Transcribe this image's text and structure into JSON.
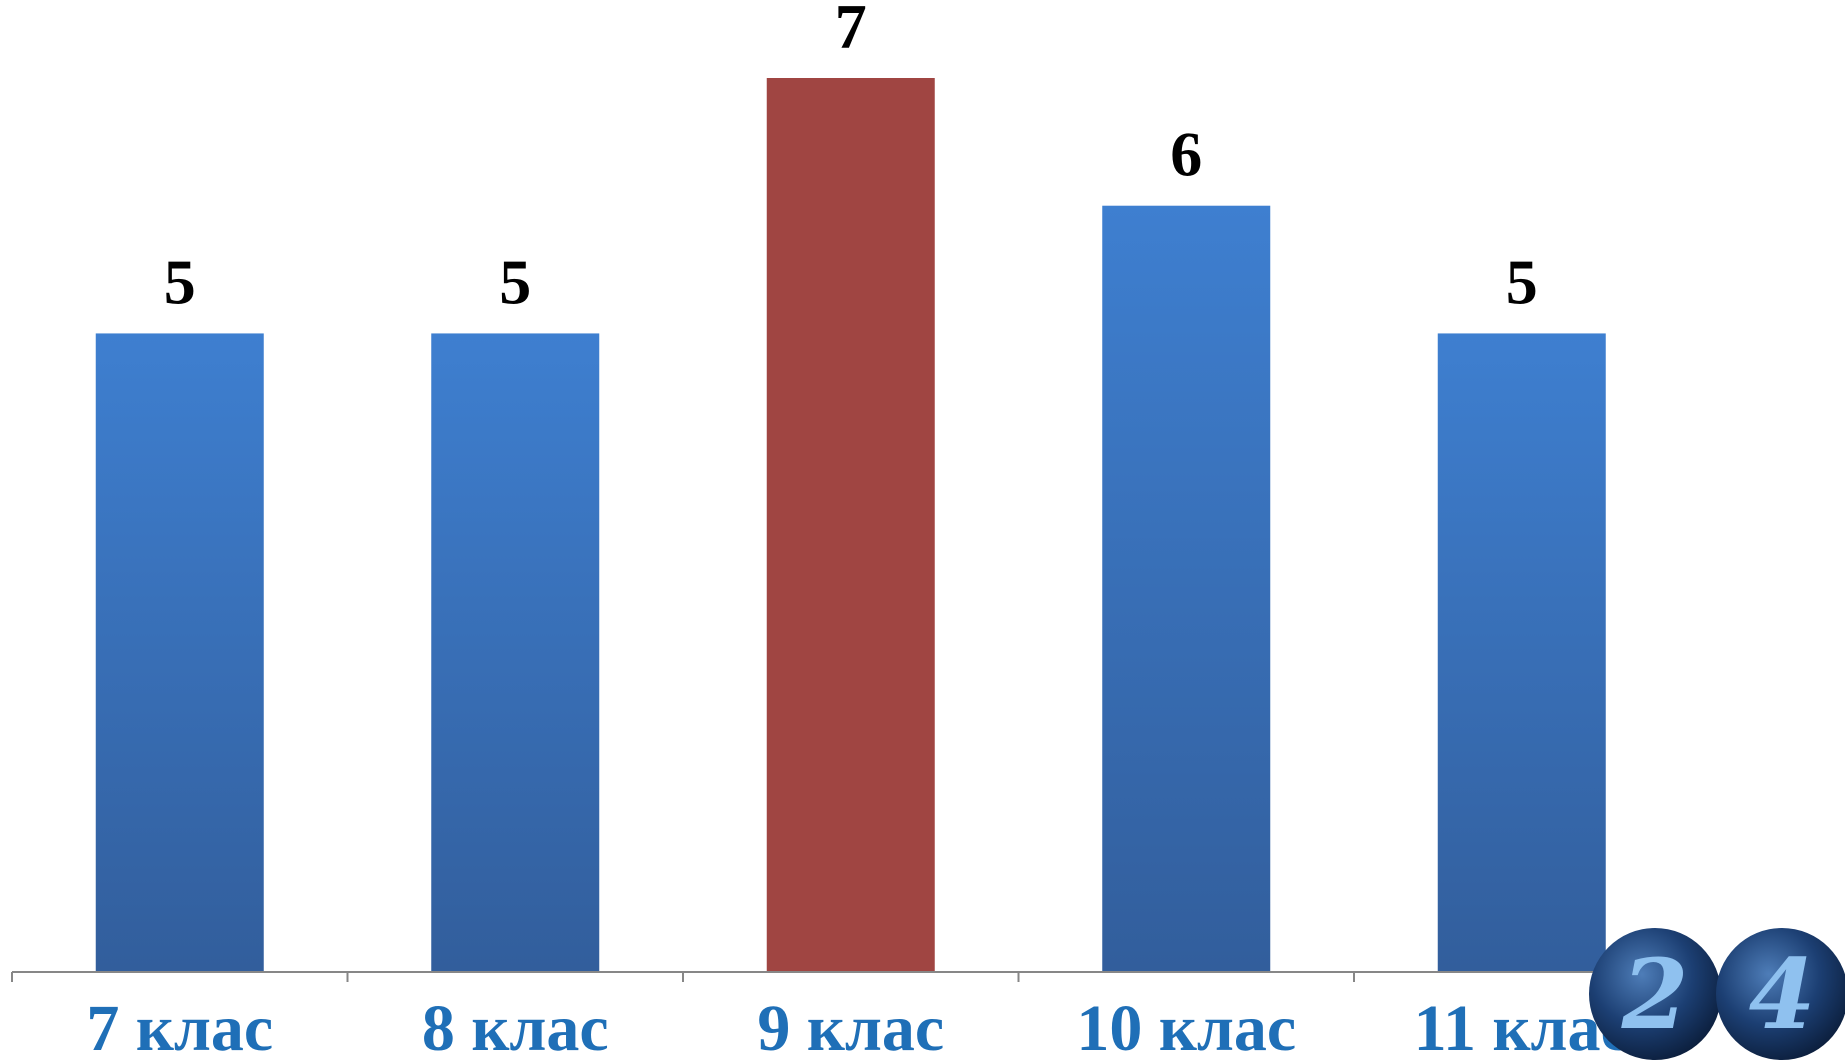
{
  "chart_data": {
    "type": "bar",
    "categories": [
      "7 клас",
      "8 клас",
      "9 клас",
      "10 клас",
      "11 клас"
    ],
    "values": [
      5,
      5,
      7,
      6,
      5
    ],
    "data_labels": [
      "5",
      "5",
      "7",
      "6",
      "5"
    ],
    "highlight_index": 2,
    "ylim": [
      0,
      7
    ],
    "grid": false,
    "legend": "none",
    "title": "",
    "xlabel": "",
    "ylabel": ""
  },
  "colors": {
    "bar_top": "#3e7fd0",
    "bar_bottom": "#325e9c",
    "highlight": "#a04542",
    "category_text": "#1f6fb7",
    "axis": "#878787",
    "logo_ball": "#1c3f73",
    "logo_digit": "#8fc1ef"
  },
  "logo": {
    "text": "24",
    "icon": "tv-channel-24-logo"
  }
}
